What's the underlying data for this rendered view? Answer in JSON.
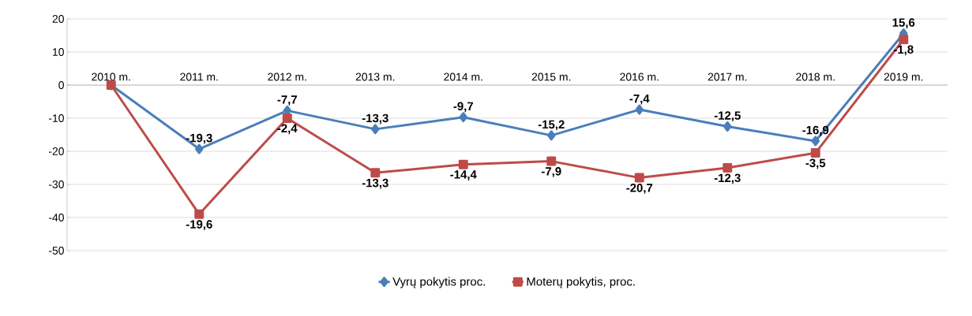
{
  "chart_data": {
    "type": "line",
    "categories": [
      "2010 m.",
      "2011 m.",
      "2012 m.",
      "2013 m.",
      "2014 m.",
      "2015 m.",
      "2016 m.",
      "2017 m.",
      "2018 m.",
      "2019 m."
    ],
    "series": [
      {
        "name": "Vyrų pokytis proc.",
        "color": "#4a7ebb",
        "marker": "diamond",
        "values": [
          0,
          -19.3,
          -7.7,
          -13.3,
          -9.7,
          -15.2,
          -7.4,
          -12.5,
          -16.9,
          15.6
        ],
        "value_labels": [
          null,
          "-19,3",
          "-7,7",
          "-13,3",
          "-9,7",
          "-15,2",
          "-7,4",
          "-12,5",
          "-16,9",
          "15,6"
        ]
      },
      {
        "name": "Moterų pokytis, proc.",
        "color": "#be4b48",
        "marker": "square",
        "values": [
          0,
          -39,
          -10,
          -26.5,
          -24,
          -23,
          -28,
          -25,
          -20.5,
          13.8
        ]
      }
    ],
    "annotations": [
      {
        "text": "-19,6",
        "x": "2011 m.",
        "y": -39
      },
      {
        "text": "-2,4",
        "x": "2012 m.",
        "y": -10
      },
      {
        "text": "-13,3",
        "x": "2013 m.",
        "y": -26.5
      },
      {
        "text": "-14,4",
        "x": "2014 m.",
        "y": -24
      },
      {
        "text": "-7,9",
        "x": "2015 m.",
        "y": -23
      },
      {
        "text": "-20,7",
        "x": "2016 m.",
        "y": -28
      },
      {
        "text": "-12,3",
        "x": "2017 m.",
        "y": -25
      },
      {
        "text": "-3,5",
        "x": "2018 m.",
        "y": -20.5
      },
      {
        "text": "-1,8",
        "x": "2019 m.",
        "y": 13.8
      }
    ],
    "ylim": [
      -50,
      20
    ],
    "yticks": [
      -50,
      -40,
      -30,
      -20,
      -10,
      0,
      10,
      20
    ],
    "grid": "y",
    "legend": "bottom"
  }
}
